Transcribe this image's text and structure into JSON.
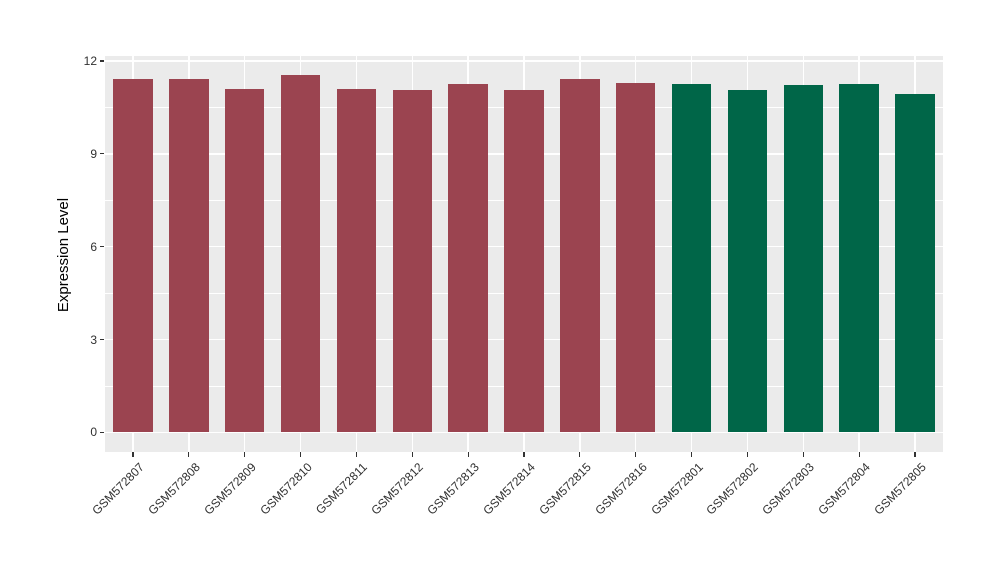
{
  "figure": {
    "background": "#FFFFFF",
    "panel_background": "#EBEBEB",
    "grid_color": "#FFFFFF",
    "tick_color": "#333333",
    "axis_text_color": "#303030",
    "axis_title_color": "#000000"
  },
  "chart_data": {
    "type": "bar",
    "title": "",
    "xlabel": "",
    "ylabel": "Expression Level",
    "categories": [
      "GSM572807",
      "GSM572808",
      "GSM572809",
      "GSM572810",
      "GSM572811",
      "GSM572812",
      "GSM572813",
      "GSM572814",
      "GSM572815",
      "GSM572816",
      "GSM572801",
      "GSM572802",
      "GSM572803",
      "GSM572804",
      "GSM572805"
    ],
    "values": [
      11.43,
      11.43,
      11.08,
      11.56,
      11.08,
      11.05,
      11.27,
      11.05,
      11.43,
      11.3,
      11.27,
      11.05,
      11.22,
      11.27,
      10.94
    ],
    "bar_colors": [
      "#9B4450",
      "#9B4450",
      "#9B4450",
      "#9B4450",
      "#9B4450",
      "#9B4450",
      "#9B4450",
      "#9B4450",
      "#9B4450",
      "#9B4450",
      "#006648",
      "#006648",
      "#006648",
      "#006648",
      "#006648"
    ],
    "group_colors": {
      "group1": "#9B4450",
      "group2": "#006648"
    },
    "yticks": [
      0,
      3,
      6,
      9,
      12
    ],
    "minor_yticks": [
      1.5,
      4.5,
      7.5,
      10.5
    ],
    "ylim": [
      -0.63,
      12.16
    ],
    "grid": true,
    "legend": "none",
    "bar_width_ratio": 0.707
  }
}
